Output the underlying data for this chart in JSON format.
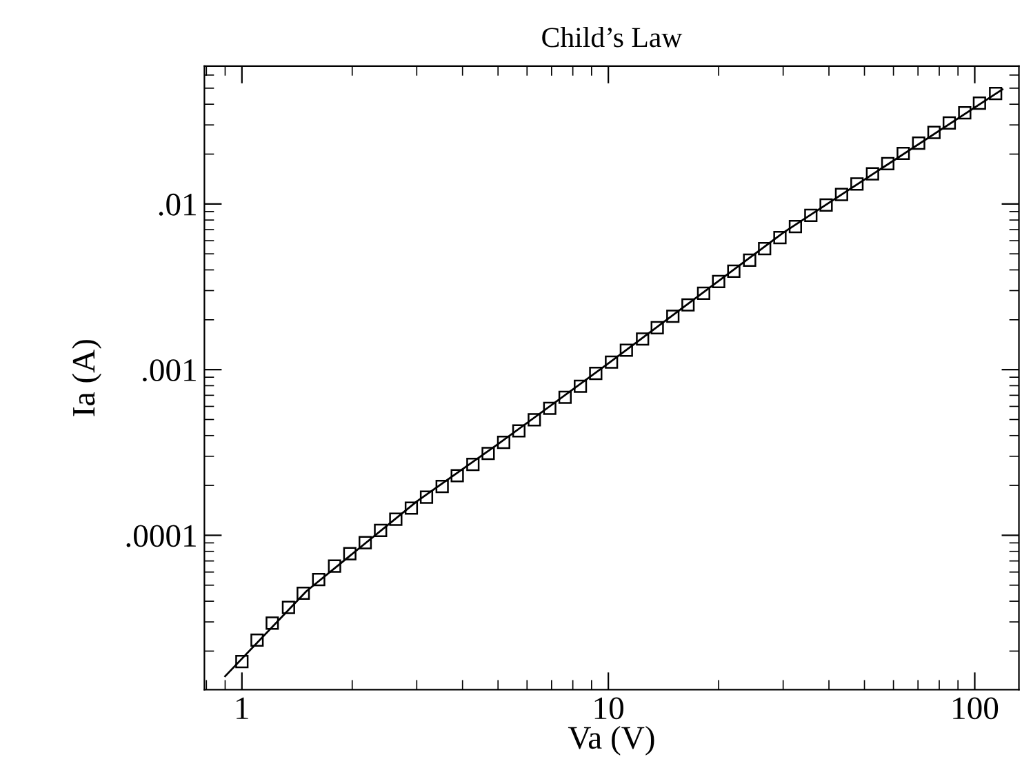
{
  "chart_data": {
    "type": "scatter",
    "title": "Child’s Law",
    "xlabel": "Va (V)",
    "ylabel": "Ia (A)",
    "log": "xy",
    "grid": false,
    "legend": false,
    "xlim": [
      0.79,
      132
    ],
    "ylim": [
      1.17e-05,
      0.068
    ],
    "xticks": [
      1,
      10,
      100
    ],
    "yticks": [
      {
        "value": 0.0001,
        "label": ".0001"
      },
      {
        "value": 0.001,
        "label": ".001"
      },
      {
        "value": 0.01,
        "label": ".01"
      }
    ],
    "series": [
      {
        "marker": "square",
        "color": "#000000",
        "x": [
          1.0,
          1.1,
          1.21,
          1.34,
          1.47,
          1.62,
          1.79,
          1.97,
          2.17,
          2.39,
          2.63,
          2.9,
          3.19,
          3.52,
          3.87,
          4.27,
          4.7,
          5.18,
          5.7,
          6.28,
          6.92,
          7.62,
          8.39,
          9.24,
          10.2,
          11.2,
          12.4,
          13.6,
          15.0,
          16.5,
          18.2,
          20.0,
          22.0,
          24.3,
          26.7,
          29.4,
          32.4,
          35.7,
          39.3,
          43.3,
          47.7,
          52.6,
          57.9,
          63.8,
          70.3,
          77.4,
          85.2,
          93.9,
          103,
          114
        ],
        "values": [
          1.73e-05,
          2.33e-05,
          2.95e-05,
          3.67e-05,
          4.47e-05,
          5.41e-05,
          6.52e-05,
          7.75e-05,
          9.03e-05,
          0.000107,
          0.000125,
          0.000146,
          0.00017,
          0.000197,
          0.000229,
          0.000268,
          0.000312,
          0.000364,
          0.000427,
          0.000498,
          0.000584,
          0.000681,
          0.000794,
          0.000949,
          0.00111,
          0.00131,
          0.00153,
          0.00179,
          0.0021,
          0.00246,
          0.00289,
          0.0034,
          0.00393,
          0.00458,
          0.00538,
          0.00627,
          0.00731,
          0.00853,
          0.00986,
          0.0114,
          0.0132,
          0.0152,
          0.0175,
          0.0202,
          0.0233,
          0.027,
          0.0308,
          0.0355,
          0.0406,
          0.0464
        ]
      },
      {
        "type": "line",
        "marker": "none",
        "line_style": "solid",
        "color": "#000000",
        "x": [
          0.9,
          1.5,
          3,
          5,
          10,
          30,
          119
        ],
        "values": [
          1.41e-05,
          4.6e-05,
          0.00016,
          0.000355,
          0.00109,
          0.0067,
          0.0492
        ]
      }
    ]
  }
}
